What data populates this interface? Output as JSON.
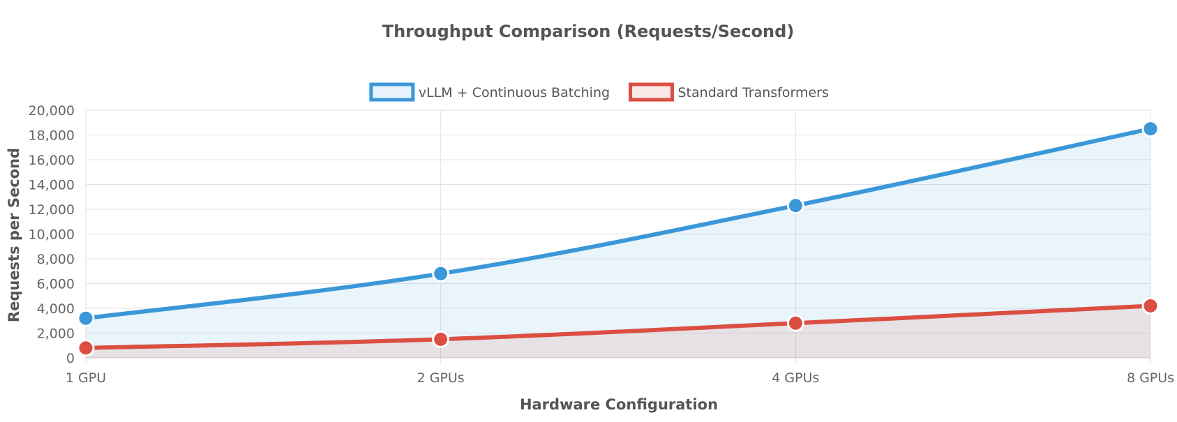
{
  "chart_data": {
    "type": "area",
    "title": "Throughput Comparison (Requests/Second)",
    "xlabel": "Hardware Configuration",
    "ylabel": "Requests per Second",
    "categories": [
      "1 GPU",
      "2 GPUs",
      "4 GPUs",
      "8 GPUs"
    ],
    "ylim": [
      0,
      20000
    ],
    "ytick_step": 2000,
    "yticks": [
      "0",
      "2,000",
      "4,000",
      "6,000",
      "8,000",
      "10,000",
      "12,000",
      "14,000",
      "16,000",
      "18,000",
      "20,000"
    ],
    "grid": true,
    "legend_position": "top-center",
    "series": [
      {
        "name": "vLLM + Continuous Batching",
        "values": [
          3200,
          6800,
          12300,
          18500
        ],
        "color": "#3a98d9",
        "fill": "#e8f3fb"
      },
      {
        "name": "Standard Transformers",
        "values": [
          800,
          1500,
          2800,
          4200
        ],
        "color": "#db4f42",
        "fill": "#fbe9e7"
      }
    ]
  }
}
